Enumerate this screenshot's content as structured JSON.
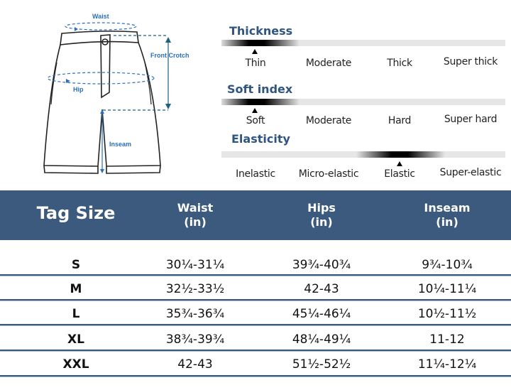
{
  "diagram": {
    "waist": "Waist",
    "front_crotch": "Front Crotch",
    "hip": "Hip",
    "inseam": "Inseam"
  },
  "scales": [
    {
      "title": "Thickness",
      "labels": [
        "Thin",
        "Moderate",
        "Thick",
        "Super thick"
      ],
      "selected_index": 0
    },
    {
      "title": "Soft index",
      "labels": [
        "Soft",
        "Moderate",
        "Hard",
        "Super hard"
      ],
      "selected_index": 0
    },
    {
      "title": "Elasticity",
      "labels": [
        "Inelastic",
        "Micro-elastic",
        "Elastic",
        "Super-elastic"
      ],
      "selected_index": 2
    }
  ],
  "table": {
    "headers": [
      {
        "line1": "Tag Size",
        "line2": ""
      },
      {
        "line1": "Waist",
        "line2": "(in)"
      },
      {
        "line1": "Hips",
        "line2": "(in)"
      },
      {
        "line1": "Inseam",
        "line2": "(in)"
      }
    ],
    "rows": [
      [
        "S",
        "30¼-31¼",
        "39¾-40¾",
        "9¾-10¾"
      ],
      [
        "M",
        "32½-33½",
        "42-43",
        "10¼-11¼"
      ],
      [
        "L",
        "35¾-36¾",
        "45¼-46¼",
        "10½-11½"
      ],
      [
        "XL",
        "38¾-39¾",
        "48¼-49¼",
        "11-12"
      ],
      [
        "XXL",
        "42-43",
        "51½-52½",
        "11¼-12¼"
      ]
    ]
  },
  "colors": {
    "header": "#3b5a7e",
    "accent": "#2a6fbf",
    "title": "#2f5580"
  }
}
